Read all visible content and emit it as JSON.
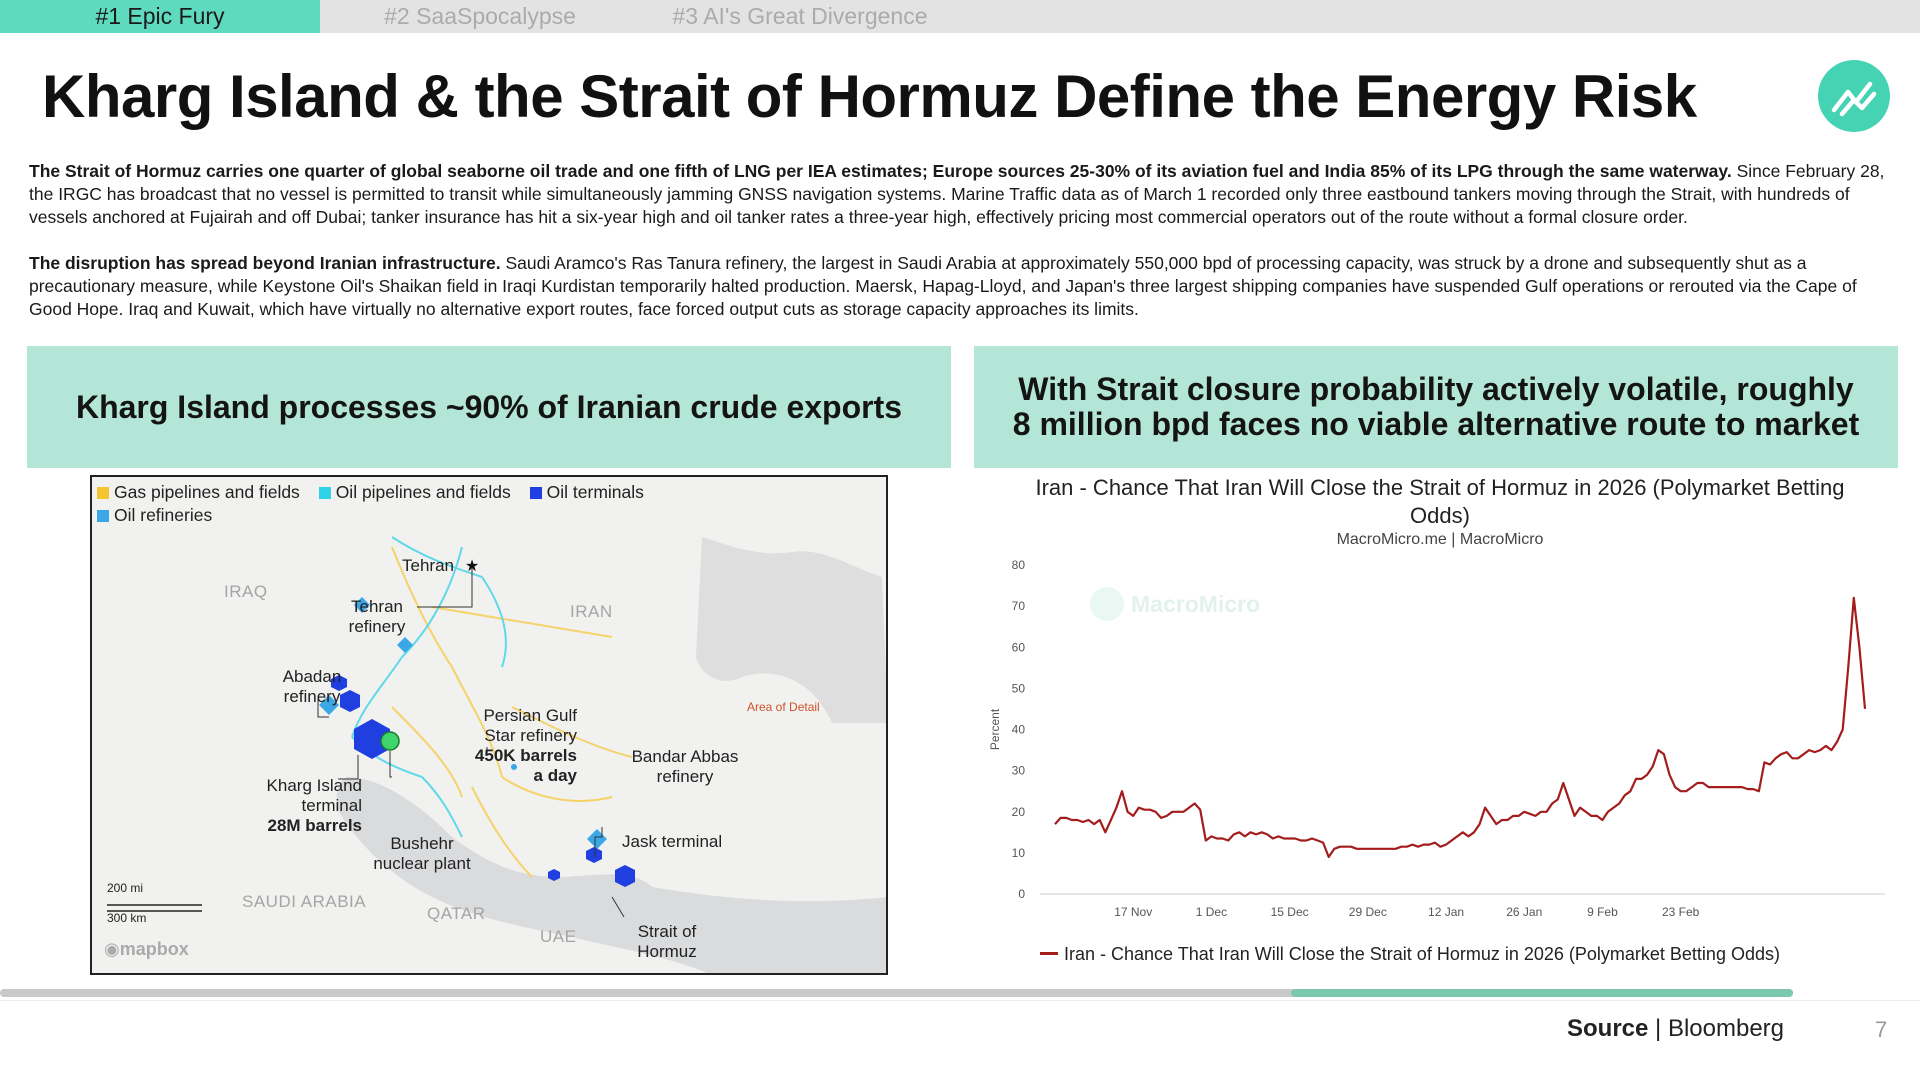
{
  "tabs": [
    {
      "label": "#1 Epic Fury",
      "active": true
    },
    {
      "label": "#2 SaaSpocalypse",
      "active": false
    },
    {
      "label": "#3 AI's Great Divergence",
      "active": false
    }
  ],
  "title": "Kharg Island & the Strait of Hormuz Define the Energy Risk",
  "logo_icon": "trend-chart-icon",
  "paragraphs": {
    "p1_bold": "The Strait of Hormuz carries one quarter of global seaborne oil trade and one fifth of LNG per IEA estimates; Europe sources 25-30% of its aviation fuel and India 85% of its LPG through the same waterway.",
    "p1_rest": " Since February 28, the IRGC has broadcast that no vessel is permitted to transit while simultaneously jamming GNSS navigation systems. Marine Traffic data as of March 1 recorded only three eastbound tankers moving through the Strait, with hundreds of vessels anchored at Fujairah and off Dubai; tanker insurance has hit a six-year high and oil tanker rates a three-year high, effectively pricing most commercial operators out of the route without a formal closure order.",
    "p2_bold": "The disruption has spread beyond Iranian infrastructure.",
    "p2_rest": " Saudi Aramco's Ras Tanura refinery, the largest in Saudi Arabia at approximately 550,000 bpd of processing capacity, was struck by a drone and subsequently shut as a precautionary measure, while Keystone Oil's Shaikan field in Iraqi Kurdistan temporarily halted production. Maersk, Hapag-Lloyd, and Japan's three largest shipping companies have suspended Gulf operations or rerouted via the Cape of Good Hope. Iraq and Kuwait, which have virtually no alternative export routes, face forced output cuts as storage capacity approaches its limits."
  },
  "panels": {
    "left_header": "Kharg Island processes ~90% of Iranian crude exports",
    "right_header": "With Strait closure probability actively volatile, roughly 8 million bpd faces no viable alternative route to market"
  },
  "map": {
    "legend": [
      {
        "label": "Gas pipelines and fields",
        "color": "#f5c431"
      },
      {
        "label": "Oil pipelines and fields",
        "color": "#2fd2e6"
      },
      {
        "label": "Oil terminals",
        "color": "#1f3fe0"
      },
      {
        "label": "Oil refineries",
        "color": "#3ba7e6"
      }
    ],
    "labels": {
      "tehran": "Tehran",
      "tehran_refinery_1": "Tehran",
      "tehran_refinery_2": "refinery",
      "abadan_1": "Abadan",
      "abadan_2": "refinery",
      "persian_gulf_1": "Persian Gulf",
      "persian_gulf_2": "Star refinery",
      "persian_gulf_3": "450K barrels",
      "persian_gulf_4": "a day",
      "bandar_1": "Bandar Abbas",
      "bandar_2": "refinery",
      "kharg_1": "Kharg Island",
      "kharg_2": "terminal",
      "kharg_3": "28M barrels",
      "jask": "Jask terminal",
      "bushehr_1": "Bushehr",
      "bushehr_2": "nuclear plant",
      "strait_1": "Strait of",
      "strait_2": "Hormuz",
      "scale_mi": "200 mi",
      "scale_km": "300 km",
      "area_detail": "Area of Detail",
      "mapbox": "mapbox"
    },
    "countries": {
      "iraq": "IRAQ",
      "iran": "IRAN",
      "saudi": "SAUDI ARABIA",
      "qatar": "QATAR",
      "uae": "UAE"
    }
  },
  "chart_data": {
    "type": "line",
    "title": "Iran - Chance That Iran Will Close the Strait of Hormuz in 2026 (Polymarket Betting Odds)",
    "subtitle": "MacroMicro.me | MacroMicro",
    "watermark": "MacroMicro",
    "xlabel": "",
    "ylabel": "Percent",
    "ylim": [
      0,
      80
    ],
    "yticks": [
      0,
      10,
      20,
      30,
      40,
      50,
      60,
      70,
      80
    ],
    "xticks": [
      "17 Nov",
      "1 Dec",
      "15 Dec",
      "29 Dec",
      "12 Jan",
      "26 Jan",
      "9 Feb",
      "23 Feb"
    ],
    "grid": false,
    "legend_position": "bottom",
    "series": [
      {
        "name": "Iran - Chance That Iran Will Close the Strait of Hormuz in 2026 (Polymarket Betting Odds)",
        "color": "#a31d1d",
        "points": [
          [
            "2025-11-03",
            17
          ],
          [
            "2025-11-04",
            18.5
          ],
          [
            "2025-11-05",
            18.5
          ],
          [
            "2025-11-06",
            18
          ],
          [
            "2025-11-07",
            18
          ],
          [
            "2025-11-08",
            17.5
          ],
          [
            "2025-11-09",
            18
          ],
          [
            "2025-11-10",
            17
          ],
          [
            "2025-11-11",
            18
          ],
          [
            "2025-11-12",
            15
          ],
          [
            "2025-11-13",
            18
          ],
          [
            "2025-11-14",
            21
          ],
          [
            "2025-11-15",
            25
          ],
          [
            "2025-11-16",
            20
          ],
          [
            "2025-11-17",
            19
          ],
          [
            "2025-11-18",
            21
          ],
          [
            "2025-11-19",
            20.5
          ],
          [
            "2025-11-20",
            20.5
          ],
          [
            "2025-11-21",
            20
          ],
          [
            "2025-11-22",
            18.5
          ],
          [
            "2025-11-23",
            19
          ],
          [
            "2025-11-24",
            20
          ],
          [
            "2025-11-25",
            20
          ],
          [
            "2025-11-26",
            20
          ],
          [
            "2025-11-27",
            21
          ],
          [
            "2025-11-28",
            22
          ],
          [
            "2025-11-29",
            20.5
          ],
          [
            "2025-11-30",
            13
          ],
          [
            "2025-12-01",
            14
          ],
          [
            "2025-12-02",
            13.5
          ],
          [
            "2025-12-03",
            13.5
          ],
          [
            "2025-12-04",
            13
          ],
          [
            "2025-12-05",
            14.5
          ],
          [
            "2025-12-06",
            15
          ],
          [
            "2025-12-07",
            14
          ],
          [
            "2025-12-08",
            15
          ],
          [
            "2025-12-09",
            14.5
          ],
          [
            "2025-12-10",
            15
          ],
          [
            "2025-12-11",
            14.5
          ],
          [
            "2025-12-12",
            13.5
          ],
          [
            "2025-12-13",
            14
          ],
          [
            "2025-12-14",
            13.5
          ],
          [
            "2025-12-15",
            13.5
          ],
          [
            "2025-12-16",
            13.5
          ],
          [
            "2025-12-17",
            13
          ],
          [
            "2025-12-18",
            13
          ],
          [
            "2025-12-19",
            13.5
          ],
          [
            "2025-12-20",
            13
          ],
          [
            "2025-12-21",
            12.5
          ],
          [
            "2025-12-22",
            9
          ],
          [
            "2025-12-23",
            11
          ],
          [
            "2025-12-24",
            11.5
          ],
          [
            "2025-12-25",
            11.5
          ],
          [
            "2025-12-26",
            11.5
          ],
          [
            "2025-12-27",
            11
          ],
          [
            "2025-12-28",
            11
          ],
          [
            "2025-12-29",
            11
          ],
          [
            "2025-12-30",
            11
          ],
          [
            "2025-12-31",
            11
          ],
          [
            "2026-01-01",
            11
          ],
          [
            "2026-01-02",
            11
          ],
          [
            "2026-01-03",
            11
          ],
          [
            "2026-01-04",
            11.5
          ],
          [
            "2026-01-05",
            11.5
          ],
          [
            "2026-01-06",
            12
          ],
          [
            "2026-01-07",
            11.5
          ],
          [
            "2026-01-08",
            12
          ],
          [
            "2026-01-09",
            12
          ],
          [
            "2026-01-10",
            12.5
          ],
          [
            "2026-01-11",
            11.5
          ],
          [
            "2026-01-12",
            12
          ],
          [
            "2026-01-13",
            13
          ],
          [
            "2026-01-14",
            14
          ],
          [
            "2026-01-15",
            15
          ],
          [
            "2026-01-16",
            14
          ],
          [
            "2026-01-17",
            15
          ],
          [
            "2026-01-18",
            17
          ],
          [
            "2026-01-19",
            21
          ],
          [
            "2026-01-20",
            19
          ],
          [
            "2026-01-21",
            17
          ],
          [
            "2026-01-22",
            18
          ],
          [
            "2026-01-23",
            18
          ],
          [
            "2026-01-24",
            19
          ],
          [
            "2026-01-25",
            19
          ],
          [
            "2026-01-26",
            20
          ],
          [
            "2026-01-27",
            19.5
          ],
          [
            "2026-01-28",
            19
          ],
          [
            "2026-01-29",
            20
          ],
          [
            "2026-01-30",
            20
          ],
          [
            "2026-01-31",
            22
          ],
          [
            "2026-02-01",
            23
          ],
          [
            "2026-02-02",
            27
          ],
          [
            "2026-02-03",
            23
          ],
          [
            "2026-02-04",
            19
          ],
          [
            "2026-02-05",
            21
          ],
          [
            "2026-02-06",
            20
          ],
          [
            "2026-02-07",
            19
          ],
          [
            "2026-02-08",
            19
          ],
          [
            "2026-02-09",
            18
          ],
          [
            "2026-02-10",
            20
          ],
          [
            "2026-02-11",
            21
          ],
          [
            "2026-02-12",
            22
          ],
          [
            "2026-02-13",
            24
          ],
          [
            "2026-02-14",
            25
          ],
          [
            "2026-02-15",
            28
          ],
          [
            "2026-02-16",
            28
          ],
          [
            "2026-02-17",
            29
          ],
          [
            "2026-02-18",
            31
          ],
          [
            "2026-02-19",
            35
          ],
          [
            "2026-02-20",
            34
          ],
          [
            "2026-02-21",
            29
          ],
          [
            "2026-02-22",
            26
          ],
          [
            "2026-02-23",
            25
          ],
          [
            "2026-02-24",
            25
          ],
          [
            "2026-02-25",
            26
          ],
          [
            "2026-02-26",
            27
          ],
          [
            "2026-02-27",
            27
          ],
          [
            "2026-02-28",
            26
          ],
          [
            "2026-03-01",
            26
          ],
          [
            "2026-03-02",
            26
          ],
          [
            "2026-03-03",
            26
          ],
          [
            "2026-03-04",
            26
          ],
          [
            "2026-03-05",
            26
          ],
          [
            "2026-03-06",
            26
          ],
          [
            "2026-03-07",
            25.5
          ],
          [
            "2026-03-08",
            25.5
          ],
          [
            "2026-03-09",
            25
          ],
          [
            "2026-03-10",
            32
          ],
          [
            "2026-03-11",
            31.5
          ],
          [
            "2026-03-12",
            33
          ],
          [
            "2026-03-13",
            34
          ],
          [
            "2026-03-14",
            34.5
          ],
          [
            "2026-03-15",
            33
          ],
          [
            "2026-03-16",
            33
          ],
          [
            "2026-03-17",
            34
          ],
          [
            "2026-03-18",
            35
          ],
          [
            "2026-03-19",
            34.5
          ],
          [
            "2026-03-20",
            35
          ],
          [
            "2026-03-21",
            36
          ],
          [
            "2026-03-22",
            35
          ],
          [
            "2026-03-23",
            37
          ],
          [
            "2026-03-24",
            40
          ],
          [
            "2026-03-25",
            55
          ],
          [
            "2026-03-26",
            72
          ],
          [
            "2026-03-27",
            60
          ],
          [
            "2026-03-28",
            45
          ]
        ]
      }
    ]
  },
  "progress": {
    "value": 0.28
  },
  "footer": {
    "source_label": "Source",
    "source_sep": " | ",
    "source_name": "Bloomberg",
    "page": "7"
  }
}
